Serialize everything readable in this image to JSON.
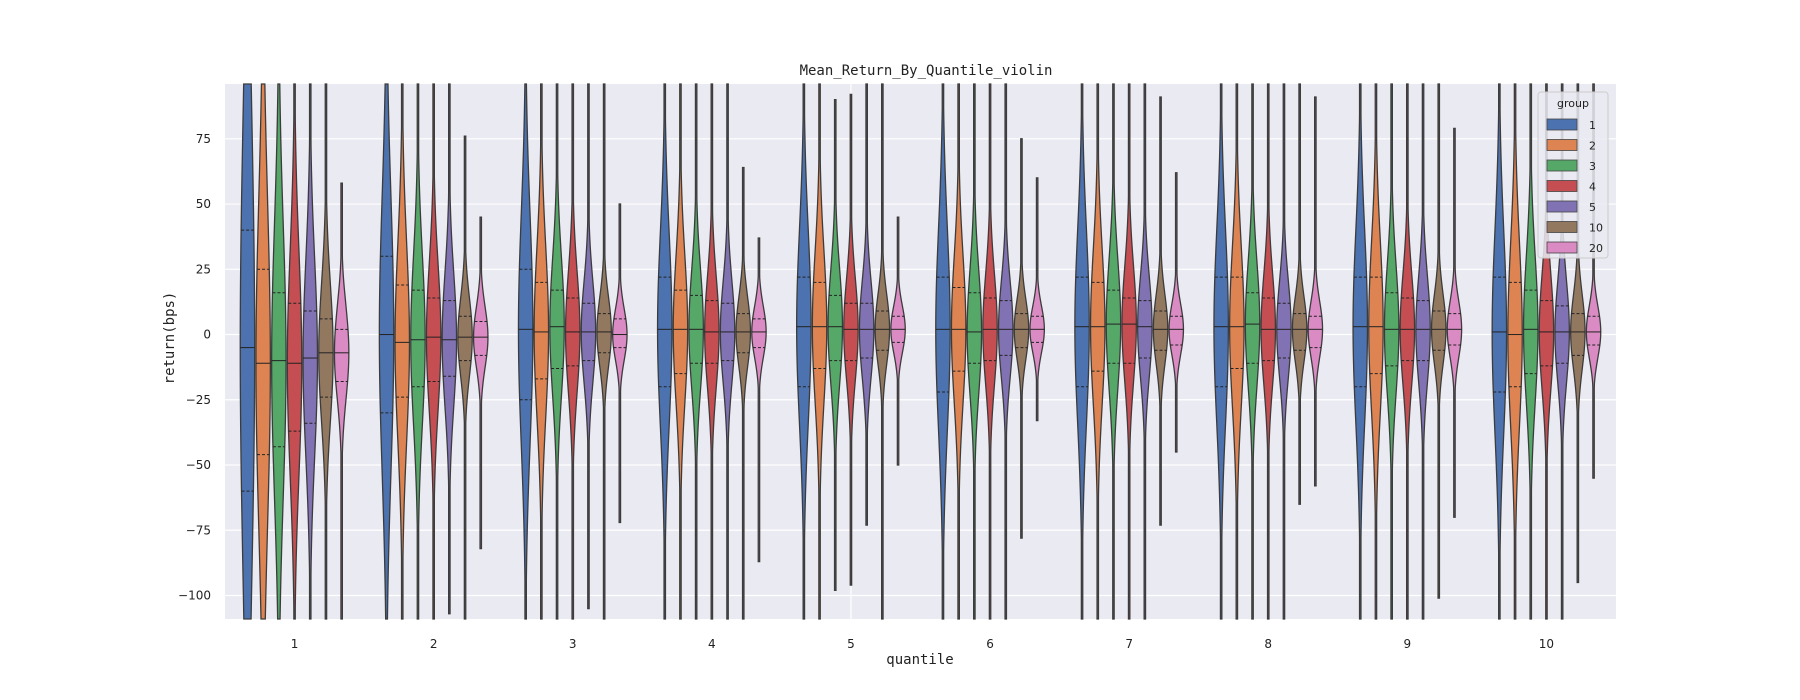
{
  "chart_data": {
    "type": "violin",
    "title": "Mean_Return_By_Quantile_violin",
    "xlabel": "quantile",
    "ylabel": "return(bps)",
    "ylim": [
      -109,
      96
    ],
    "yticks": [
      75,
      50,
      25,
      0,
      -25,
      -50,
      -75,
      -100
    ],
    "grid": true,
    "legend_title": "group",
    "legend_position": "top-right",
    "categories": [
      "1",
      "2",
      "3",
      "4",
      "5",
      "6",
      "7",
      "8",
      "9",
      "10"
    ],
    "series": [
      {
        "name": "1",
        "color": "#4c72b0",
        "min": [
          -300,
          -300,
          -300,
          -300,
          -300,
          -300,
          -300,
          -300,
          -300,
          -300
        ],
        "q1": [
          -60,
          -30,
          -25,
          -20,
          -20,
          -22,
          -20,
          -20,
          -20,
          -22
        ],
        "median": [
          -5,
          0,
          2,
          2,
          3,
          2,
          3,
          3,
          3,
          1
        ],
        "q3": [
          40,
          30,
          25,
          22,
          22,
          22,
          22,
          22,
          22,
          22
        ],
        "max": [
          300,
          300,
          300,
          300,
          300,
          300,
          300,
          300,
          300,
          300
        ]
      },
      {
        "name": "2",
        "color": "#dd8452",
        "min": [
          -300,
          -300,
          -300,
          -300,
          -300,
          -300,
          -300,
          -300,
          -300,
          -300
        ],
        "q1": [
          -46,
          -24,
          -17,
          -15,
          -13,
          -14,
          -14,
          -13,
          -15,
          -20
        ],
        "median": [
          -11,
          -3,
          1,
          2,
          3,
          2,
          3,
          3,
          3,
          0
        ],
        "q3": [
          25,
          19,
          20,
          17,
          20,
          18,
          20,
          22,
          22,
          20
        ],
        "max": [
          300,
          300,
          300,
          300,
          300,
          300,
          300,
          300,
          300,
          300
        ]
      },
      {
        "name": "3",
        "color": "#55a868",
        "min": [
          -300,
          -300,
          -300,
          -300,
          -98,
          -300,
          -300,
          -300,
          -300,
          -300
        ],
        "q1": [
          -43,
          -20,
          -13,
          -11,
          -10,
          -11,
          -11,
          -11,
          -12,
          -15
        ],
        "median": [
          -10,
          -2,
          3,
          2,
          3,
          1,
          4,
          4,
          2,
          2
        ],
        "q3": [
          16,
          17,
          17,
          15,
          15,
          16,
          17,
          16,
          16,
          17
        ],
        "max": [
          300,
          300,
          300,
          300,
          90,
          300,
          300,
          300,
          300,
          300
        ]
      },
      {
        "name": "4",
        "color": "#c44e52",
        "min": [
          -300,
          -300,
          -300,
          -300,
          -96,
          -300,
          -300,
          -300,
          -300,
          -300
        ],
        "q1": [
          -37,
          -18,
          -12,
          -11,
          -10,
          -10,
          -11,
          -10,
          -10,
          -12
        ],
        "median": [
          -11,
          -1,
          1,
          1,
          2,
          2,
          4,
          2,
          2,
          1
        ],
        "q3": [
          12,
          14,
          14,
          13,
          12,
          14,
          14,
          14,
          14,
          13
        ],
        "max": [
          300,
          300,
          300,
          300,
          92,
          300,
          300,
          300,
          300,
          300
        ]
      },
      {
        "name": "5",
        "color": "#8172b3",
        "min": [
          -300,
          -107,
          -105,
          -300,
          -73,
          -300,
          -300,
          -300,
          -300,
          -300
        ],
        "q1": [
          -34,
          -16,
          -10,
          -10,
          -9,
          -8,
          -9,
          -9,
          -10,
          -11
        ],
        "median": [
          -9,
          -2,
          1,
          1,
          2,
          2,
          3,
          2,
          2,
          1
        ],
        "q3": [
          9,
          13,
          12,
          12,
          12,
          13,
          13,
          12,
          13,
          11
        ],
        "max": [
          300,
          300,
          300,
          300,
          300,
          300,
          300,
          300,
          300,
          300
        ]
      },
      {
        "name": "10",
        "color": "#937860",
        "min": [
          -300,
          -300,
          -300,
          -300,
          -300,
          -78,
          -73,
          -65,
          -101,
          -95
        ],
        "q1": [
          -24,
          -10,
          -7,
          -7,
          -6,
          -5,
          -6,
          -6,
          -6,
          -8
        ],
        "median": [
          -7,
          -1,
          1,
          1,
          2,
          2,
          2,
          2,
          2,
          1
        ],
        "q3": [
          6,
          7,
          8,
          8,
          9,
          8,
          9,
          8,
          9,
          8
        ],
        "max": [
          300,
          76,
          300,
          64,
          300,
          75,
          91,
          300,
          300,
          300
        ]
      },
      {
        "name": "20",
        "color": "#da8bc3",
        "min": [
          -300,
          -82,
          -72,
          -87,
          -50,
          -33,
          -45,
          -58,
          -70,
          -55
        ],
        "q1": [
          -18,
          -8,
          -5,
          -5,
          -3,
          -3,
          -4,
          -5,
          -4,
          -4
        ],
        "median": [
          -7,
          -1,
          0,
          1,
          2,
          2,
          2,
          2,
          2,
          1
        ],
        "q3": [
          2,
          5,
          6,
          6,
          7,
          7,
          7,
          7,
          8,
          7
        ],
        "max": [
          58,
          45,
          50,
          37,
          45,
          60,
          62,
          91,
          79,
          300
        ]
      }
    ]
  }
}
